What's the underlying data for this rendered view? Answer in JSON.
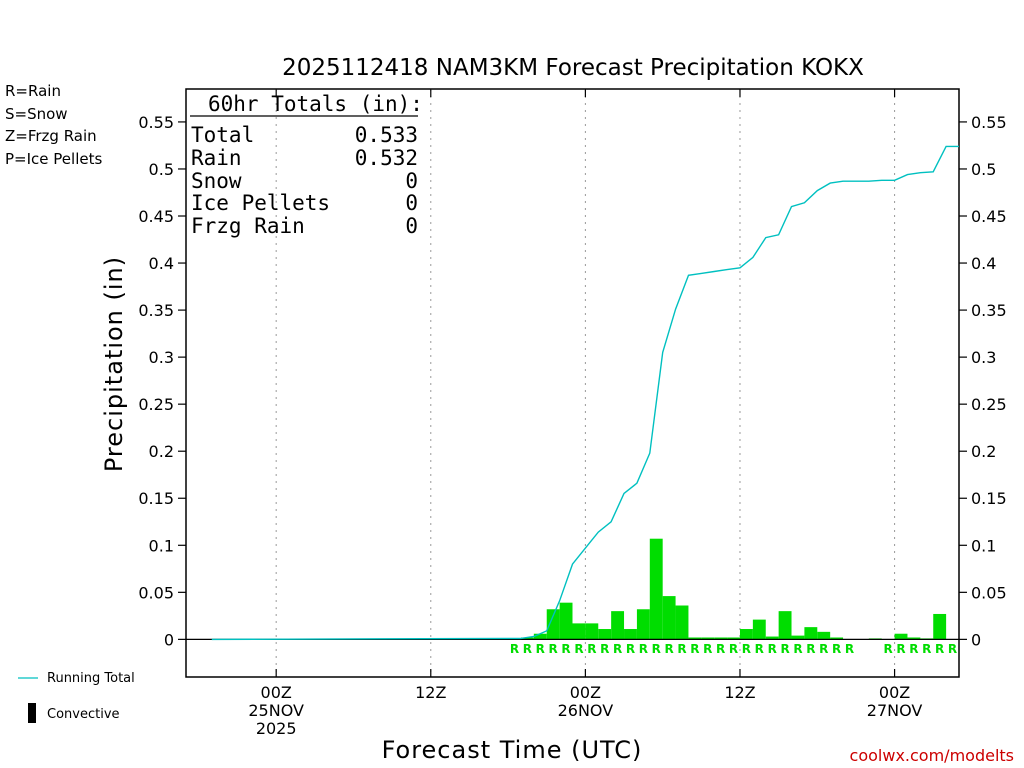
{
  "chart_data": {
    "type": "bar",
    "title": "2025112418 NAM3KM Forecast Precipitation KOKX",
    "xlabel": "Forecast Time (UTC)",
    "ylabel": "Precipitation (in)",
    "ylim": [
      -0.04,
      0.585
    ],
    "xlim": [
      -7,
      53
    ],
    "y_ticks": [
      0,
      0.05,
      0.1,
      0.15,
      0.2,
      0.25,
      0.3,
      0.35,
      0.4,
      0.45,
      0.5,
      0.55
    ],
    "y_tick_labels": [
      "0",
      "0.05",
      "0.1",
      "0.15",
      "0.2",
      "0.25",
      "0.3",
      "0.35",
      "0.4",
      "0.45",
      "0.5",
      "0.55"
    ],
    "x_ticks": [
      {
        "hour": 0,
        "lines": [
          "00Z",
          "25NOV",
          "2025"
        ]
      },
      {
        "hour": 12,
        "lines": [
          "12Z"
        ]
      },
      {
        "hour": 24,
        "lines": [
          "00Z",
          "26NOV"
        ]
      },
      {
        "hour": 36,
        "lines": [
          "12Z"
        ]
      },
      {
        "hour": 48,
        "lines": [
          "00Z",
          "27NOV"
        ]
      }
    ],
    "hours": [
      19,
      20,
      21,
      22,
      23,
      24,
      25,
      26,
      27,
      28,
      29,
      30,
      31,
      32,
      33,
      34,
      35,
      36,
      37,
      38,
      39,
      40,
      41,
      42,
      43,
      44,
      45,
      46,
      47,
      48,
      49,
      50,
      51,
      52,
      53
    ],
    "series": [
      {
        "name": "Rain",
        "color": "#00dd00",
        "values": [
          0.001,
          0.002,
          0.006,
          0.032,
          0.039,
          0.017,
          0.017,
          0.011,
          0.03,
          0.011,
          0.032,
          0.107,
          0.046,
          0.036,
          0.002,
          0.002,
          0.002,
          0.002,
          0.011,
          0.021,
          0.003,
          0.03,
          0.004,
          0.013,
          0.008,
          0.002,
          0.0,
          0.0,
          0.001,
          0.0,
          0.006,
          0.002,
          0.001,
          0.027,
          0.0
        ]
      },
      {
        "name": "Running Total",
        "color": "#00c0c0",
        "values": [
          0.001,
          0.003,
          0.009,
          0.041,
          0.08,
          0.097,
          0.114,
          0.125,
          0.155,
          0.166,
          0.198,
          0.305,
          0.351,
          0.387,
          0.389,
          0.391,
          0.393,
          0.395,
          0.406,
          0.427,
          0.43,
          0.46,
          0.464,
          0.477,
          0.485,
          0.487,
          0.487,
          0.487,
          0.488,
          0.488,
          0.494,
          0.496,
          0.497,
          0.524,
          0.524
        ]
      }
    ],
    "running_total_start": {
      "hour": -5,
      "value": 0.0
    },
    "rain_marker_hours": [
      19,
      20,
      21,
      22,
      23,
      24,
      25,
      26,
      27,
      28,
      29,
      30,
      31,
      32,
      33,
      34,
      35,
      36,
      37,
      38,
      39,
      40,
      41,
      42,
      43,
      44,
      45,
      48,
      49,
      50,
      51,
      52,
      53
    ],
    "rain_marker_letter": "R"
  },
  "totals": {
    "header": "60hr Totals (in):",
    "rows": [
      {
        "label": "Total",
        "value": "0.533"
      },
      {
        "label": "Rain",
        "value": "0.532"
      },
      {
        "label": "Snow",
        "value": "0"
      },
      {
        "label": "Ice Pellets",
        "value": "0"
      },
      {
        "label": "Frzg Rain",
        "value": "0"
      }
    ]
  },
  "type_legend": [
    {
      "text": "R=Rain",
      "color": "#00dd00"
    },
    {
      "text": "S=Snow",
      "color": "#3a4bd6"
    },
    {
      "text": "Z=Frzg Rain",
      "color": "#f08a30"
    },
    {
      "text": "P=Ice Pellets",
      "color": "#e0188a"
    }
  ],
  "bottom_legend": {
    "running_total": "Running Total",
    "convective": "Convective"
  },
  "credit": "coolwx.com/modelts",
  "colors": {
    "rain": "#00dd00",
    "running_total": "#00c0c0",
    "credit": "#cc0000",
    "grid": "#999999"
  }
}
